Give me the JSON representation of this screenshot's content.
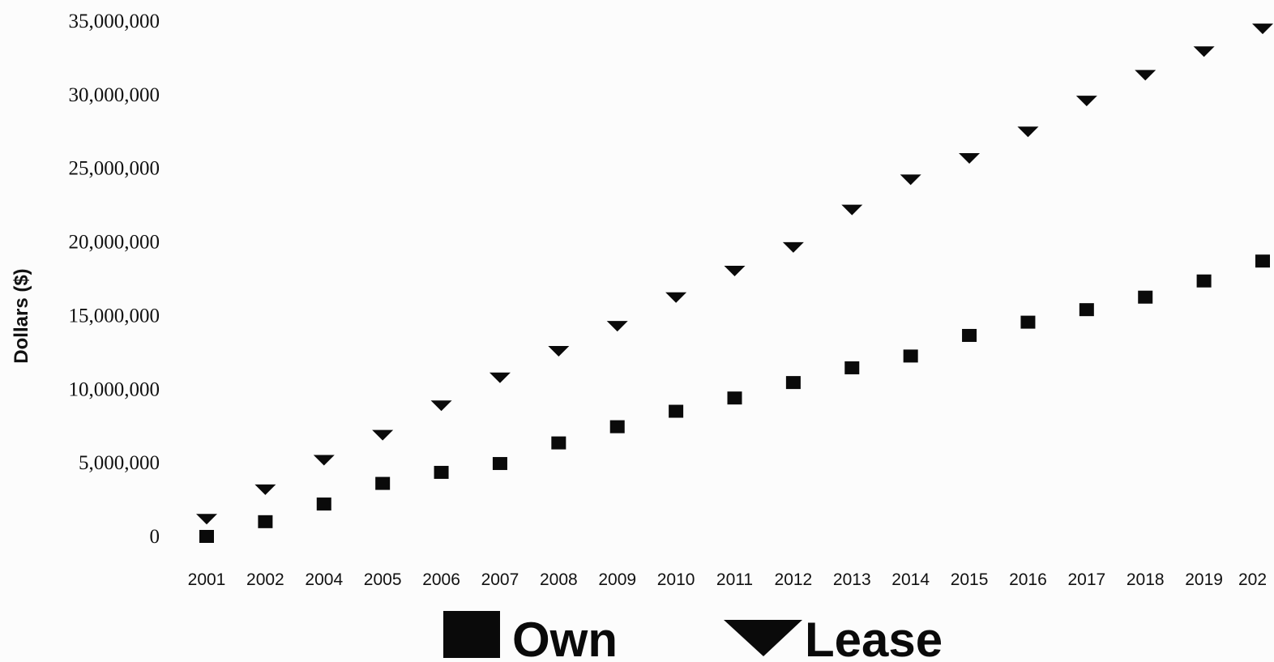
{
  "chart_data": {
    "type": "scatter",
    "ylabel": "Dollars ($)",
    "xlabel": "",
    "title": "",
    "categories": [
      "2001",
      "2002",
      "2004",
      "2005",
      "2006",
      "2007",
      "2008",
      "2009",
      "2010",
      "2011",
      "2012",
      "2013",
      "2014",
      "2015",
      "2016",
      "2017",
      "2018",
      "2019",
      "202"
    ],
    "y_ticks": [
      "0",
      "5,000,000",
      "10,000,000",
      "15,000,000",
      "20,000,000",
      "25,000,000",
      "30,000,000",
      "35,000,000"
    ],
    "ylim": [
      0,
      35000000
    ],
    "grid": false,
    "legend_position": "bottom",
    "series": [
      {
        "name": "Own",
        "marker": "square",
        "color": "#0a0a0a",
        "values": [
          0,
          1000000,
          2200000,
          3600000,
          4350000,
          4950000,
          6350000,
          7450000,
          8500000,
          9400000,
          10450000,
          11450000,
          12250000,
          13650000,
          14550000,
          15400000,
          16250000,
          17350000,
          18700000
        ]
      },
      {
        "name": "Lease",
        "marker": "triangle-down",
        "color": "#0a0a0a",
        "values": [
          1200000,
          3200000,
          5200000,
          6900000,
          8900000,
          10800000,
          12600000,
          14300000,
          16250000,
          18050000,
          19650000,
          22200000,
          24250000,
          25700000,
          27500000,
          29600000,
          31350000,
          32950000,
          34500000
        ]
      }
    ]
  }
}
